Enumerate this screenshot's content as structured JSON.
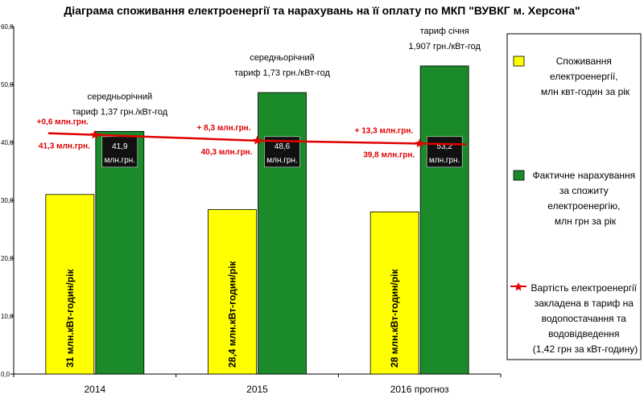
{
  "chart_data": {
    "type": "bar",
    "title": "Діаграма споживання електроенергії та нарахувань на її оплату по МКП \"ВУВКГ м. Херсона\"",
    "categories": [
      "2014",
      "2015",
      "2016 прогноз"
    ],
    "ylim": [
      0,
      60
    ],
    "yticks": [
      "0,0",
      "10,0",
      "20,0",
      "30,0",
      "40,0",
      "50,0",
      "60,0"
    ],
    "grid": false,
    "legend_position": "right",
    "series": [
      {
        "name": "Споживання електроенергії, млн квт-годин за рік",
        "type": "bar",
        "color": "#ffff00",
        "values": [
          31,
          28.4,
          28
        ],
        "labels": [
          "31 млн.кВт-годин/рік",
          "28,4 млн.кВт-годин/рік",
          "28 млн.кВт-годин/рік"
        ]
      },
      {
        "name": "Фактичне нарахування за спожиту електроенергію, млн грн за рік",
        "type": "bar",
        "color": "#1a8a2a",
        "values": [
          41.9,
          48.6,
          53.2
        ],
        "labels": [
          {
            "line1": "41,9",
            "line2": "млн.грн."
          },
          {
            "line1": "48,6",
            "line2": "млн.грн."
          },
          {
            "line1": "53,2",
            "line2": "млн.грн."
          }
        ]
      },
      {
        "name": "Вартість електроенергії закладена в тариф на водопостачання та водовідведення (1,42 грн за кВт-годину)",
        "type": "line",
        "color": "#e00000",
        "values": [
          41.3,
          40.3,
          39.8
        ],
        "labels": [
          "41,3 млн.грн.",
          "40,3 млн.грн.",
          "39,8 млн.грн."
        ]
      }
    ],
    "annotations": {
      "tariffs": [
        {
          "line1": "середньорічний",
          "line2": "тариф 1,37 грн./кВт-год"
        },
        {
          "line1": "середньорічний",
          "line2": "тариф 1,73 грн./кВт-год"
        },
        {
          "line1": "тариф січня",
          "line2": "1,907 грн./кВт-год"
        }
      ],
      "differences": [
        "+0,6 млн.грн.",
        "+ 8,3 млн.грн.",
        "+ 13,3 млн.грн."
      ]
    },
    "legend": [
      {
        "lines": [
          "Споживання",
          "електроенергії,",
          "млн квт-годин за рік"
        ]
      },
      {
        "lines": [
          "Фактичне нарахування",
          "за спожиту",
          "електроенергію,",
          "млн грн за рік"
        ]
      },
      {
        "lines": [
          "Вартість електроенергії",
          "закладена в тариф на",
          "водопостачання та",
          "водовідведення",
          "(1,42 грн за кВт-годину)"
        ]
      }
    ]
  }
}
